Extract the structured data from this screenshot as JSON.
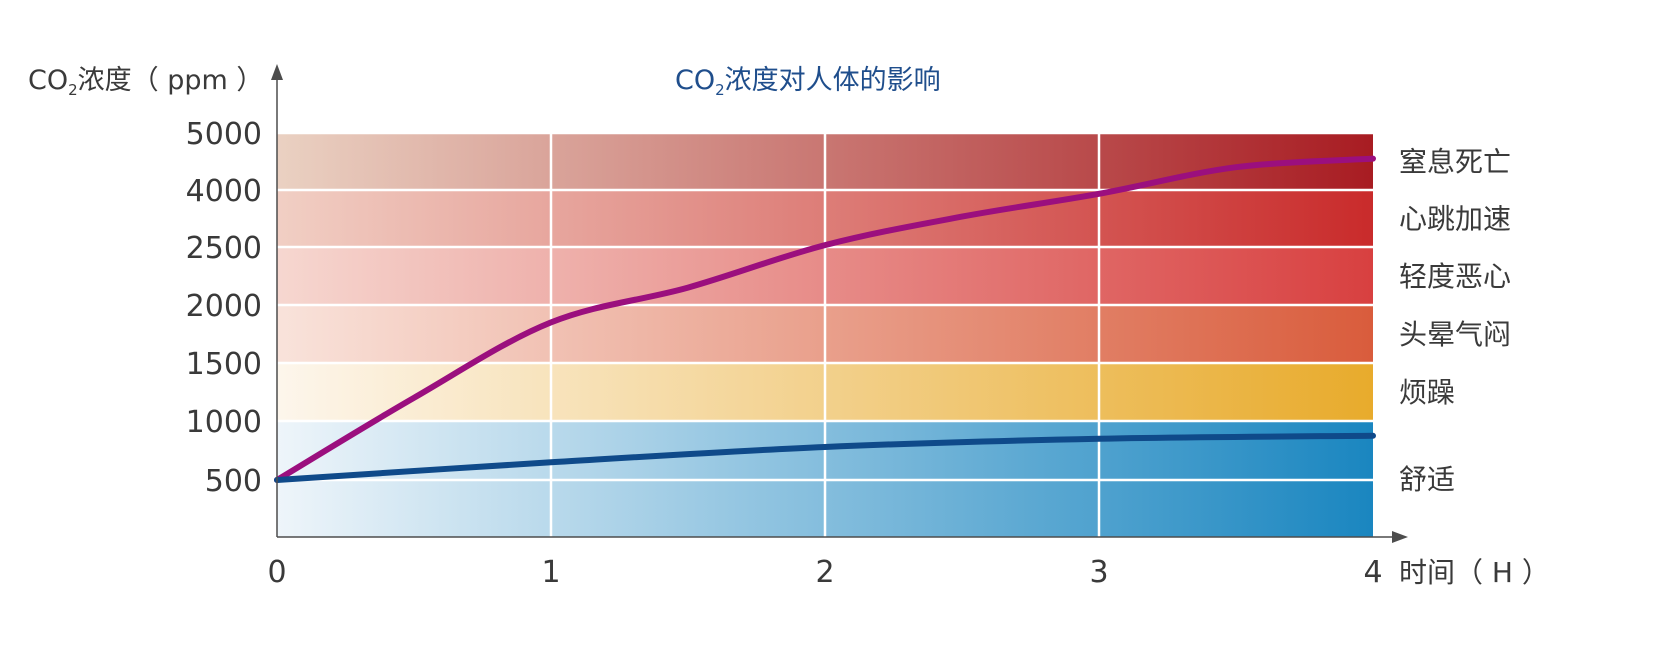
{
  "chart_data": {
    "type": "line",
    "title": {
      "main": "CO",
      "sub": "2",
      "rest": "浓度对人体的影响"
    },
    "ylabel": {
      "main": "CO",
      "sub": "2",
      "rest": "浓度（ ppm ）"
    },
    "xlabel": "时间（ H ）",
    "x_ticks": [
      "0",
      "1",
      "2",
      "3",
      "4"
    ],
    "xlim": [
      0,
      4
    ],
    "y_ticks": [
      "500",
      "1000",
      "1500",
      "2000",
      "2500",
      "4000",
      "5000"
    ],
    "y_scale": "categorical-bands",
    "zones": [
      {
        "label": "舒适",
        "range": [
          "0",
          "1000"
        ],
        "from_color": "#eef5fa",
        "to_color": "#1a86c0"
      },
      {
        "label": "烦躁",
        "range": [
          "1000",
          "1500"
        ],
        "from_color": "#fdf6ec",
        "to_color": "#e8ab2c"
      },
      {
        "label": "头晕气闷",
        "range": [
          "1500",
          "2000"
        ],
        "from_color": "#f9e3db",
        "to_color": "#d95c3c"
      },
      {
        "label": "轻度恶心",
        "range": [
          "2000",
          "2500"
        ],
        "from_color": "#f6d7d0",
        "to_color": "#d84040"
      },
      {
        "label": "心跳加速",
        "range": [
          "2500",
          "4000"
        ],
        "from_color": "#f1cfc4",
        "to_color": "#c92b2b"
      },
      {
        "label": "窒息死亡",
        "range": [
          "4000",
          "5000"
        ],
        "from_color": "#ead1c2",
        "to_color": "#a81c22"
      }
    ],
    "series": [
      {
        "color": "#9b0f7e",
        "points": [
          {
            "x": 0,
            "y": 500
          },
          {
            "x": 0.5,
            "y": 1200
          },
          {
            "x": 1,
            "y": 1850
          },
          {
            "x": 1.5,
            "y": 2150
          },
          {
            "x": 2,
            "y": 2550
          },
          {
            "x": 2.5,
            "y": 3300
          },
          {
            "x": 3,
            "y": 3900
          },
          {
            "x": 3.5,
            "y": 4400
          },
          {
            "x": 4,
            "y": 4550
          }
        ]
      },
      {
        "color": "#0f4a8a",
        "points": [
          {
            "x": 0,
            "y": 500
          },
          {
            "x": 1,
            "y": 650
          },
          {
            "x": 2,
            "y": 780
          },
          {
            "x": 3,
            "y": 850
          },
          {
            "x": 4,
            "y": 875
          }
        ]
      }
    ],
    "grid": true,
    "axis_color": "#4d4d4d",
    "grid_color": "#ffffff"
  }
}
